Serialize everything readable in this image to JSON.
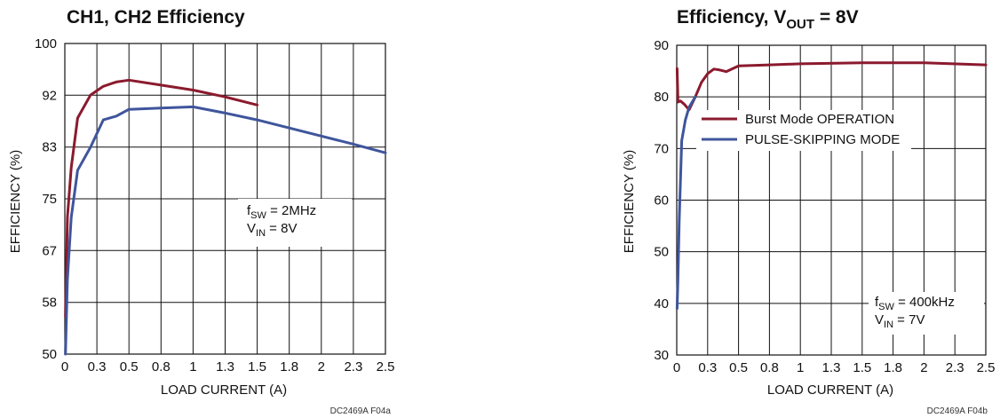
{
  "colors": {
    "series_1": "#8b1a2e",
    "series_2": "#3f559c",
    "grid": "#111111"
  },
  "chart_data": [
    {
      "type": "line",
      "title": "CH1, CH2 Efficiency",
      "xlabel": "LOAD CURRENT (A)",
      "ylabel": "EFFICIENCY (%)",
      "xlim": [
        0,
        2.5
      ],
      "ylim": [
        50,
        100
      ],
      "x_ticks": [
        0,
        0.25,
        0.5,
        0.75,
        1.0,
        1.25,
        1.5,
        1.75,
        2.0,
        2.25,
        2.5
      ],
      "x_tick_labels": [
        "0",
        "0.3",
        "0.5",
        "0.8",
        "1",
        "1.3",
        "1.5",
        "1.8",
        "2",
        "2.3",
        "2.5"
      ],
      "y_ticks": [
        50,
        58.33,
        66.67,
        75,
        83.33,
        91.67,
        100
      ],
      "y_tick_labels": [
        "50",
        "58",
        "67",
        "75",
        "83",
        "92",
        "100"
      ],
      "grid": true,
      "annotation": {
        "f_main": "f",
        "f_sub": "SW",
        "f_rest": " = 2MHz",
        "v_main": "V",
        "v_sub": "IN",
        "v_rest": " = 8V"
      },
      "footer_code": "DC2469A  F04a",
      "series": [
        {
          "color": "series_1",
          "x": [
            0.005,
            0.02,
            0.05,
            0.1,
            0.2,
            0.3,
            0.4,
            0.5,
            0.75,
            1.0,
            1.25,
            1.5
          ],
          "y": [
            56,
            72,
            80,
            88,
            91.7,
            93.1,
            93.8,
            94.1,
            93.3,
            92.5,
            91.4,
            90.1
          ]
        },
        {
          "color": "series_2",
          "x": [
            0.005,
            0.02,
            0.05,
            0.1,
            0.2,
            0.3,
            0.4,
            0.5,
            0.75,
            1.0,
            1.25,
            1.5,
            1.75,
            2.0,
            2.25,
            2.5
          ],
          "y": [
            50,
            62,
            72,
            79.6,
            83.3,
            87.7,
            88.3,
            89.4,
            89.6,
            89.8,
            88.8,
            87.7,
            86.4,
            85.1,
            83.8,
            82.4
          ]
        }
      ]
    },
    {
      "type": "line",
      "title_main": "Efficiency, V",
      "title_sub": "OUT",
      "title_rest": " = 8V",
      "xlabel": "LOAD CURRENT (A)",
      "ylabel": "EFFICIENCY (%)",
      "xlim": [
        0,
        2.5
      ],
      "ylim": [
        30,
        90
      ],
      "x_ticks": [
        0,
        0.25,
        0.5,
        0.75,
        1.0,
        1.25,
        1.5,
        1.75,
        2.0,
        2.25,
        2.5
      ],
      "x_tick_labels": [
        "0",
        "0.3",
        "0.5",
        "0.8",
        "1",
        "1.3",
        "1.5",
        "1.8",
        "2",
        "2.3",
        "2.5"
      ],
      "y_ticks": [
        30,
        40,
        50,
        60,
        70,
        80,
        90
      ],
      "y_tick_labels": [
        "30",
        "40",
        "50",
        "60",
        "70",
        "80",
        "90"
      ],
      "grid": true,
      "legend": [
        {
          "label": "Burst Mode OPERATION",
          "color": "series_1"
        },
        {
          "label": "PULSE-SKIPPING MODE",
          "color": "series_2"
        }
      ],
      "annotation": {
        "f_main": "f",
        "f_sub": "SW",
        "f_rest": " = 400kHz",
        "v_main": "V",
        "v_sub": "IN",
        "v_rest": " = 7V"
      },
      "footer_code": "DC2469A F04b",
      "series": [
        {
          "color": "series_1",
          "x": [
            0.003,
            0.01,
            0.03,
            0.06,
            0.1,
            0.15,
            0.2,
            0.25,
            0.3,
            0.35,
            0.4,
            0.5,
            0.75,
            1.0,
            1.5,
            2.0,
            2.5
          ],
          "y": [
            85.5,
            79,
            79.2,
            78.6,
            77.5,
            80,
            82.8,
            84.5,
            85.4,
            85.2,
            84.9,
            86,
            86.2,
            86.4,
            86.6,
            86.6,
            86.2
          ]
        },
        {
          "color": "series_2",
          "x": [
            0.003,
            0.01,
            0.02,
            0.04,
            0.07,
            0.1,
            0.15
          ],
          "y": [
            39,
            45,
            56,
            71.5,
            75.5,
            78,
            80
          ]
        }
      ]
    }
  ]
}
